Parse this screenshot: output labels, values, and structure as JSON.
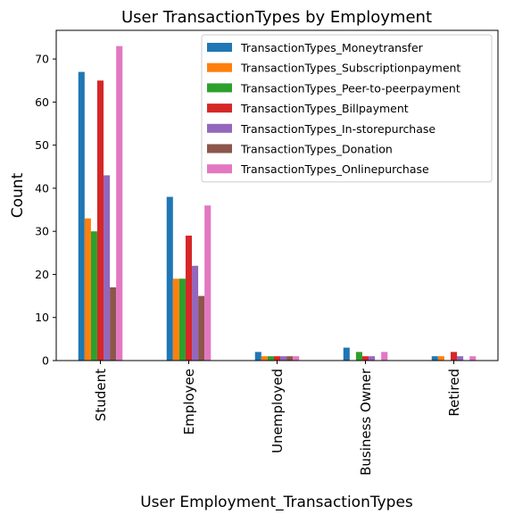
{
  "chart_data": {
    "type": "bar",
    "title": "User TransactionTypes by Employment",
    "xlabel": "User Employment_TransactionTypes",
    "ylabel": "Count",
    "ylim": [
      0,
      76.65
    ],
    "yticks": [
      0,
      10,
      20,
      30,
      40,
      50,
      60,
      70
    ],
    "grid": false,
    "legend_position": "top-right",
    "categories": [
      "Student",
      "Employee",
      "Unemployed",
      "Business Owner",
      "Retired"
    ],
    "series": [
      {
        "name": "TransactionTypes_Moneytransfer",
        "color": "#1f77b4",
        "values": [
          67,
          38,
          2,
          3,
          1
        ]
      },
      {
        "name": "TransactionTypes_Subscriptionpayment",
        "color": "#ff7f0e",
        "values": [
          33,
          19,
          1,
          0,
          1
        ]
      },
      {
        "name": "TransactionTypes_Peer-to-peerpayment",
        "color": "#2ca02c",
        "values": [
          30,
          19,
          1,
          2,
          0
        ]
      },
      {
        "name": "TransactionTypes_Billpayment",
        "color": "#d62728",
        "values": [
          65,
          29,
          1,
          1,
          2
        ]
      },
      {
        "name": "TransactionTypes_In-storepurchase",
        "color": "#9467bd",
        "values": [
          43,
          22,
          1,
          1,
          1
        ]
      },
      {
        "name": "TransactionTypes_Donation",
        "color": "#8c564b",
        "values": [
          17,
          15,
          1,
          0,
          0
        ]
      },
      {
        "name": "TransactionTypes_Onlinepurchase",
        "color": "#e377c2",
        "values": [
          73,
          36,
          1,
          2,
          1
        ]
      }
    ]
  }
}
